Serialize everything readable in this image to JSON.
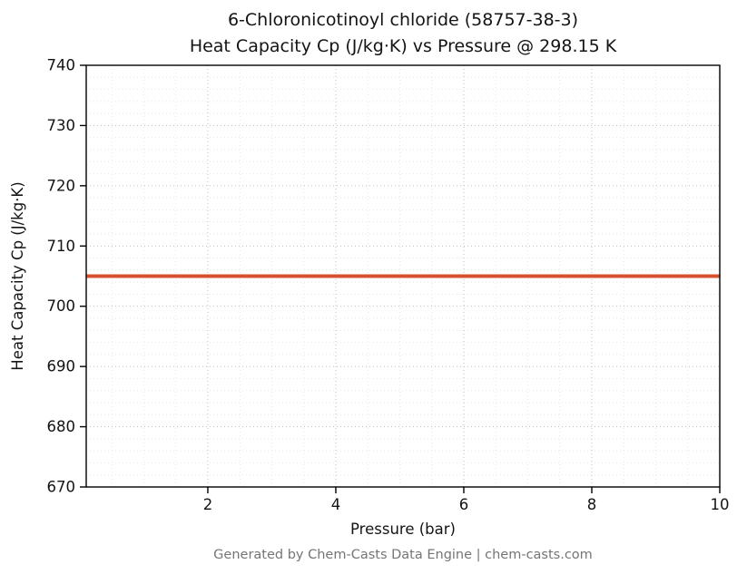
{
  "chart_data": {
    "type": "line",
    "title_line1": "6-Chloronicotinoyl chloride (58757-38-3)",
    "title_line2": "Heat Capacity Cp (J/kg·K) vs Pressure @ 298.15 K",
    "xlabel": "Pressure (bar)",
    "ylabel": "Heat Capacity Cp (J/kg·K)",
    "xlim": [
      0.1,
      10
    ],
    "ylim": [
      670,
      740
    ],
    "xticks": [
      2,
      4,
      6,
      8,
      10
    ],
    "yticks": [
      670,
      680,
      690,
      700,
      710,
      720,
      730,
      740
    ],
    "grid": true,
    "minor_x_step": 0.5,
    "minor_y_step": 2,
    "series": [
      {
        "name": "Heat Capacity Cp",
        "x": [
          0.1,
          10
        ],
        "y": [
          705,
          705
        ],
        "color": "#d9512c",
        "linewidth": 4
      }
    ],
    "footer": "Generated by Chem-Casts Data Engine | chem-casts.com"
  },
  "colors": {
    "line": "#d9512c",
    "major_grid": "#b8b8b8",
    "minor_grid": "#dedede",
    "spine": "#000000",
    "text": "#141414",
    "footer_text": "#757575"
  }
}
